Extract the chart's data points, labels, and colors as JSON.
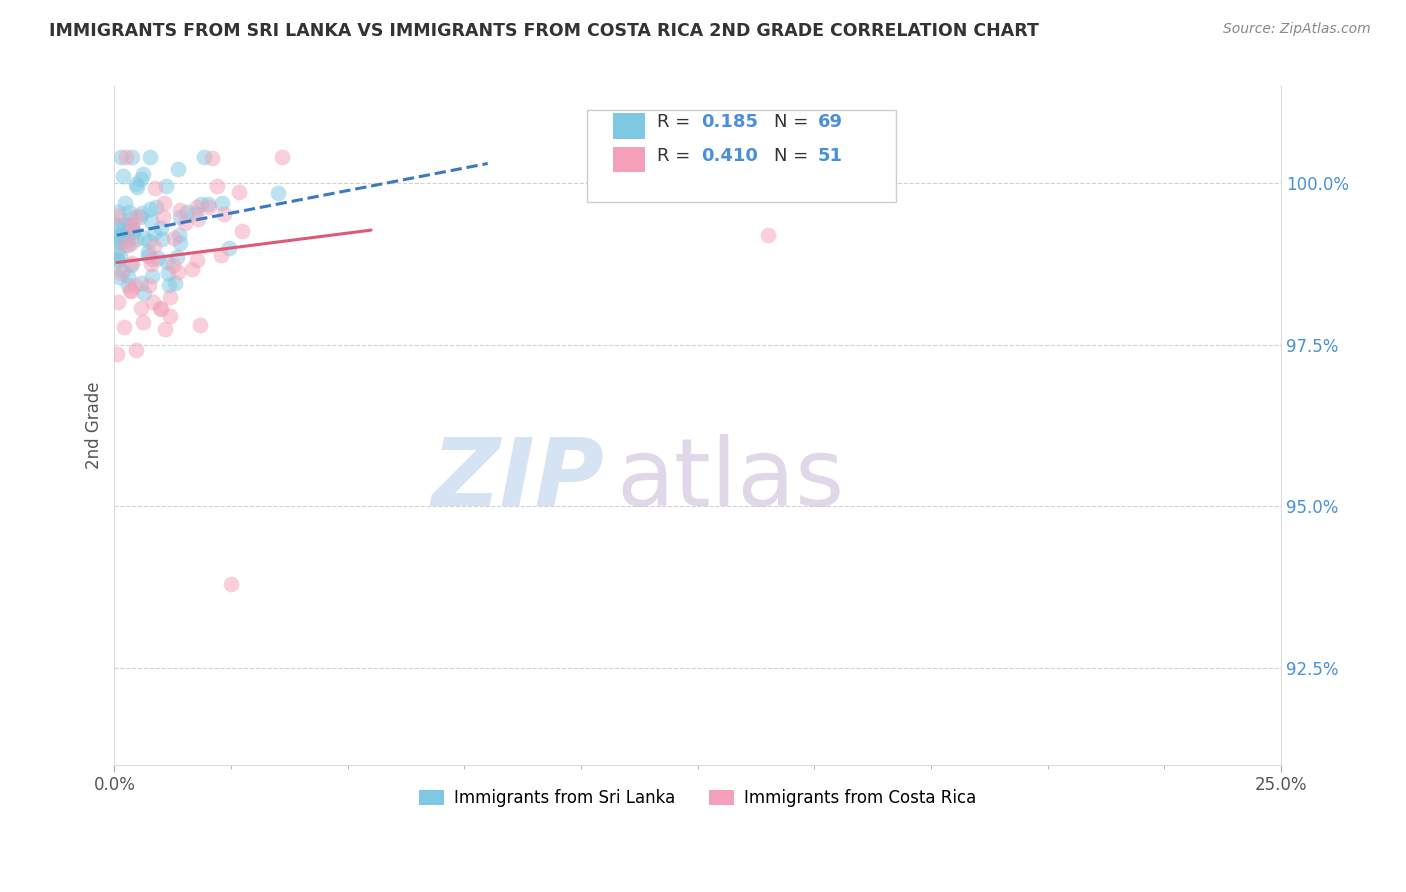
{
  "title": "IMMIGRANTS FROM SRI LANKA VS IMMIGRANTS FROM COSTA RICA 2ND GRADE CORRELATION CHART",
  "source": "Source: ZipAtlas.com",
  "ylabel": "2nd Grade",
  "yticks": [
    92.5,
    95.0,
    97.5,
    100.0
  ],
  "ytick_labels": [
    "92.5%",
    "95.0%",
    "97.5%",
    "100.0%"
  ],
  "xlim": [
    0.0,
    25.0
  ],
  "ylim": [
    91.0,
    101.5
  ],
  "sri_lanka_color": "#7ec8e3",
  "costa_rica_color": "#f4a0b8",
  "sri_lanka_line_color": "#3a7abf",
  "costa_rica_line_color": "#e05878",
  "legend_sri_lanka": "Immigrants from Sri Lanka",
  "legend_costa_rica": "Immigrants from Costa Rica",
  "R_sri_lanka": 0.185,
  "N_sri_lanka": 69,
  "R_costa_rica": 0.41,
  "N_costa_rica": 51,
  "watermark_zip_color": "#c5d8ef",
  "watermark_atlas_color": "#d4c8e0",
  "background_color": "#ffffff",
  "grid_color": "#cccccc",
  "ytick_color": "#4a90d9",
  "title_color": "#333333",
  "source_color": "#888888"
}
